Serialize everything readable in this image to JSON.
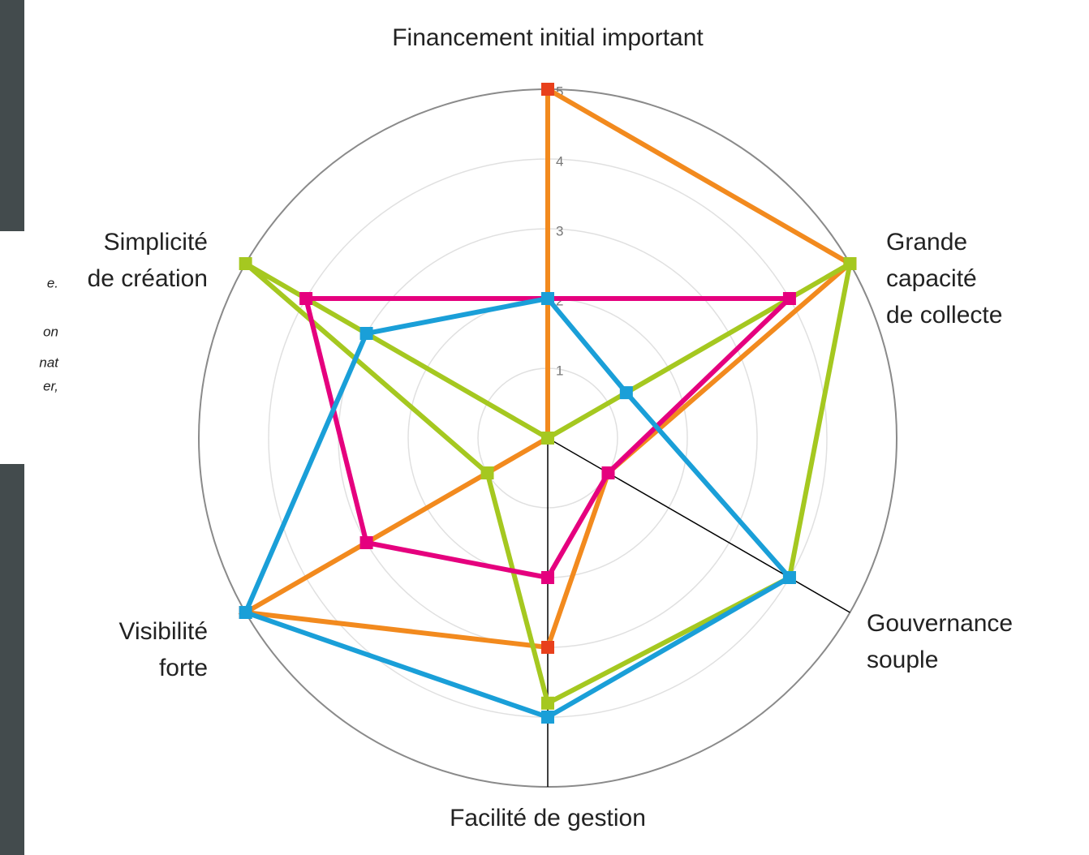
{
  "chart_data": {
    "type": "radar",
    "title": "Financement initial important",
    "categories": [
      [
        "Financement initial important"
      ],
      [
        "Grande",
        "capacité",
        "de collecte"
      ],
      [
        "Gouvernance",
        "souple"
      ],
      [
        "Facilité de gestion"
      ],
      [
        "Visibilité",
        "forte"
      ],
      [
        "Simplicité",
        "de création"
      ]
    ],
    "rlim": [
      0,
      5
    ],
    "rticks": [
      1,
      2,
      3,
      4,
      5
    ],
    "grid": true,
    "series": [
      {
        "color": "#f28a1e",
        "marker_color": "#e8401c",
        "values": [
          5,
          5,
          1,
          3,
          5,
          0
        ]
      },
      {
        "color": "#a5c820",
        "marker_color": "#a5c820",
        "values": [
          0,
          5,
          4,
          3.8,
          1,
          5
        ]
      },
      {
        "color": "#e5007e",
        "marker_color": "#e5007e",
        "values": [
          2,
          4,
          1,
          2,
          3,
          4
        ]
      },
      {
        "color": "#1a9fd8",
        "marker_color": "#1a9fd8",
        "values": [
          2,
          1.3,
          4,
          4,
          5,
          3
        ]
      }
    ]
  },
  "side_fragments": [
    "e.",
    "on",
    "nat",
    "er,"
  ]
}
